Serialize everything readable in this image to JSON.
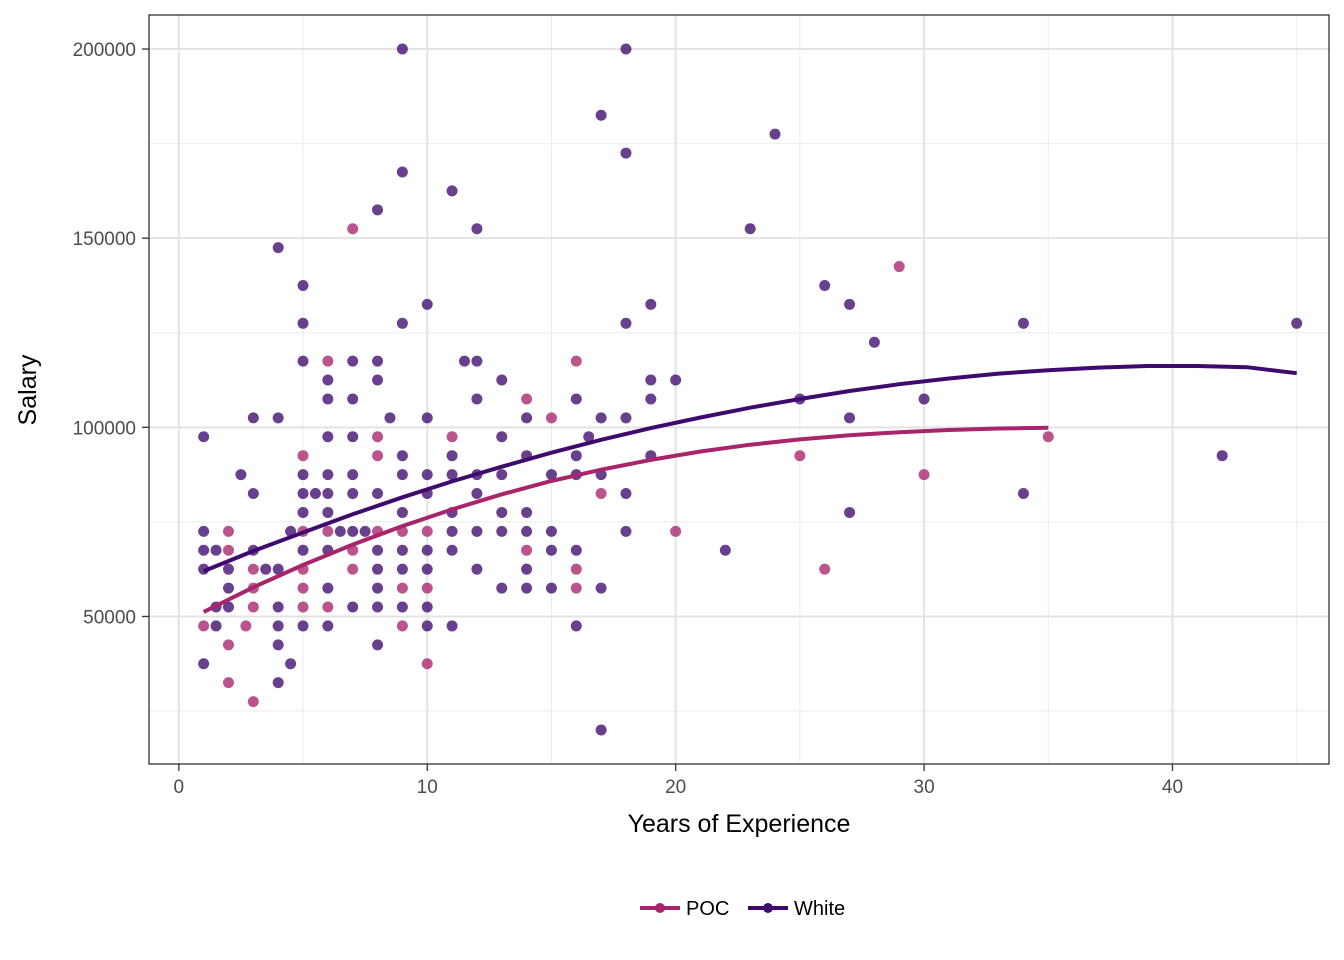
{
  "chart_data": {
    "type": "scatter",
    "title": "",
    "xlabel": "Years of Experience",
    "ylabel": "Salary",
    "xlim": [
      -1.2,
      46.3
    ],
    "ylim": [
      11000,
      209000
    ],
    "x_ticks": [
      0,
      10,
      20,
      30,
      40
    ],
    "x_tick_labels": [
      "0",
      "10",
      "20",
      "30",
      "40"
    ],
    "y_ticks": [
      50000,
      100000,
      150000,
      200000
    ],
    "y_tick_labels": [
      "50000",
      "100000",
      "150000",
      "200000"
    ],
    "grid": true,
    "legend_position": "bottom",
    "series": [
      {
        "name": "POC",
        "color": "#A8246B",
        "points": [
          [
            1,
            47500
          ],
          [
            2,
            72500
          ],
          [
            2,
            67500
          ],
          [
            2,
            42500
          ],
          [
            2,
            32500
          ],
          [
            2.7,
            47500
          ],
          [
            3,
            62500
          ],
          [
            3,
            57500
          ],
          [
            3,
            52500
          ],
          [
            3,
            27500
          ],
          [
            5,
            92500
          ],
          [
            5,
            72500
          ],
          [
            5,
            62500
          ],
          [
            5,
            57500
          ],
          [
            5,
            52500
          ],
          [
            6,
            117500
          ],
          [
            6,
            72500
          ],
          [
            6,
            52500
          ],
          [
            7,
            152500
          ],
          [
            7,
            67500
          ],
          [
            7,
            62500
          ],
          [
            8,
            97500
          ],
          [
            8,
            92500
          ],
          [
            8,
            72500
          ],
          [
            9,
            72500
          ],
          [
            9,
            57500
          ],
          [
            9,
            47500
          ],
          [
            10,
            72500
          ],
          [
            10,
            57500
          ],
          [
            10,
            37500
          ],
          [
            11,
            97500
          ],
          [
            14,
            107500
          ],
          [
            14,
            67500
          ],
          [
            15,
            102500
          ],
          [
            16,
            117500
          ],
          [
            16,
            62500
          ],
          [
            16,
            57500
          ],
          [
            17,
            82500
          ],
          [
            20,
            72500
          ],
          [
            25,
            92500
          ],
          [
            26,
            62500
          ],
          [
            29,
            142500
          ],
          [
            30,
            87500
          ],
          [
            35,
            97500
          ]
        ],
        "fit_line": [
          [
            1,
            51200
          ],
          [
            3,
            57700
          ],
          [
            5,
            63600
          ],
          [
            7,
            69000
          ],
          [
            9,
            73900
          ],
          [
            11,
            78300
          ],
          [
            13,
            82300
          ],
          [
            15,
            85800
          ],
          [
            17,
            88800
          ],
          [
            19,
            91400
          ],
          [
            21,
            93600
          ],
          [
            23,
            95400
          ],
          [
            25,
            96800
          ],
          [
            27,
            97900
          ],
          [
            29,
            98700
          ],
          [
            31,
            99300
          ],
          [
            33,
            99700
          ],
          [
            35,
            99900
          ]
        ]
      },
      {
        "name": "White",
        "color": "#3F0A6E",
        "points": [
          [
            1,
            97500
          ],
          [
            1,
            72500
          ],
          [
            1,
            67500
          ],
          [
            1,
            62500
          ],
          [
            1,
            37500
          ],
          [
            1.5,
            67500
          ],
          [
            1.5,
            52500
          ],
          [
            1.5,
            47500
          ],
          [
            2,
            62500
          ],
          [
            2,
            57500
          ],
          [
            2,
            52500
          ],
          [
            2.5,
            87500
          ],
          [
            3,
            102500
          ],
          [
            3,
            82500
          ],
          [
            3,
            67500
          ],
          [
            3.5,
            62500
          ],
          [
            4,
            147500
          ],
          [
            4,
            102500
          ],
          [
            4,
            62500
          ],
          [
            4,
            52500
          ],
          [
            4,
            47500
          ],
          [
            4,
            42500
          ],
          [
            4,
            32500
          ],
          [
            4.5,
            72500
          ],
          [
            4.5,
            37500
          ],
          [
            5,
            137500
          ],
          [
            5,
            127500
          ],
          [
            5,
            117500
          ],
          [
            5,
            87500
          ],
          [
            5,
            82500
          ],
          [
            5,
            77500
          ],
          [
            5,
            67500
          ],
          [
            5,
            47500
          ],
          [
            5.5,
            82500
          ],
          [
            6,
            112500
          ],
          [
            6,
            107500
          ],
          [
            6,
            97500
          ],
          [
            6,
            87500
          ],
          [
            6,
            82500
          ],
          [
            6,
            77500
          ],
          [
            6,
            67500
          ],
          [
            6,
            57500
          ],
          [
            6,
            47500
          ],
          [
            6.5,
            72500
          ],
          [
            7,
            117500
          ],
          [
            7,
            107500
          ],
          [
            7,
            97500
          ],
          [
            7,
            87500
          ],
          [
            7,
            82500
          ],
          [
            7,
            72500
          ],
          [
            7,
            52500
          ],
          [
            7.5,
            72500
          ],
          [
            8,
            157500
          ],
          [
            8,
            117500
          ],
          [
            8,
            112500
          ],
          [
            8,
            82500
          ],
          [
            8,
            67500
          ],
          [
            8,
            62500
          ],
          [
            8,
            57500
          ],
          [
            8,
            52500
          ],
          [
            8,
            42500
          ],
          [
            8.5,
            102500
          ],
          [
            9,
            200000
          ],
          [
            9,
            167500
          ],
          [
            9,
            127500
          ],
          [
            9,
            92500
          ],
          [
            9,
            87500
          ],
          [
            9,
            77500
          ],
          [
            9,
            67500
          ],
          [
            9,
            62500
          ],
          [
            9,
            52500
          ],
          [
            10,
            132500
          ],
          [
            10,
            102500
          ],
          [
            10,
            87500
          ],
          [
            10,
            82500
          ],
          [
            10,
            67500
          ],
          [
            10,
            62500
          ],
          [
            10,
            52500
          ],
          [
            10,
            47500
          ],
          [
            11,
            162500
          ],
          [
            11,
            92500
          ],
          [
            11,
            87500
          ],
          [
            11,
            77500
          ],
          [
            11,
            72500
          ],
          [
            11,
            67500
          ],
          [
            11,
            47500
          ],
          [
            11.5,
            117500
          ],
          [
            12,
            152500
          ],
          [
            12,
            117500
          ],
          [
            12,
            107500
          ],
          [
            12,
            87500
          ],
          [
            12,
            82500
          ],
          [
            12,
            72500
          ],
          [
            12,
            62500
          ],
          [
            13,
            112500
          ],
          [
            13,
            97500
          ],
          [
            13,
            87500
          ],
          [
            13,
            77500
          ],
          [
            13,
            72500
          ],
          [
            13,
            57500
          ],
          [
            14,
            102500
          ],
          [
            14,
            92500
          ],
          [
            14,
            77500
          ],
          [
            14,
            72500
          ],
          [
            14,
            62500
          ],
          [
            14,
            57500
          ],
          [
            15,
            87500
          ],
          [
            15,
            72500
          ],
          [
            15,
            67500
          ],
          [
            15,
            57500
          ],
          [
            16,
            107500
          ],
          [
            16,
            92500
          ],
          [
            16,
            87500
          ],
          [
            16,
            67500
          ],
          [
            16,
            47500
          ],
          [
            16.5,
            97500
          ],
          [
            17,
            182500
          ],
          [
            17,
            102500
          ],
          [
            17,
            87500
          ],
          [
            17,
            57500
          ],
          [
            17,
            20000
          ],
          [
            18,
            200000
          ],
          [
            18,
            172500
          ],
          [
            18,
            127500
          ],
          [
            18,
            102500
          ],
          [
            18,
            82500
          ],
          [
            18,
            72500
          ],
          [
            19,
            132500
          ],
          [
            19,
            112500
          ],
          [
            19,
            107500
          ],
          [
            19,
            92500
          ],
          [
            20,
            112500
          ],
          [
            22,
            67500
          ],
          [
            23,
            152500
          ],
          [
            24,
            177500
          ],
          [
            25,
            107500
          ],
          [
            26,
            137500
          ],
          [
            27,
            132500
          ],
          [
            27,
            102500
          ],
          [
            27,
            77500
          ],
          [
            28,
            122500
          ],
          [
            30,
            107500
          ],
          [
            34,
            127500
          ],
          [
            34,
            82500
          ],
          [
            42,
            92500
          ],
          [
            45,
            127500
          ]
        ],
        "fit_line": [
          [
            1,
            62000
          ],
          [
            3,
            67300
          ],
          [
            5,
            72200
          ],
          [
            7,
            77000
          ],
          [
            9,
            81500
          ],
          [
            11,
            85700
          ],
          [
            13,
            89600
          ],
          [
            15,
            93300
          ],
          [
            17,
            96700
          ],
          [
            19,
            99800
          ],
          [
            21,
            102600
          ],
          [
            23,
            105200
          ],
          [
            25,
            107500
          ],
          [
            27,
            109600
          ],
          [
            29,
            111400
          ],
          [
            31,
            112900
          ],
          [
            33,
            114200
          ],
          [
            35,
            115100
          ],
          [
            37,
            115800
          ],
          [
            39,
            116200
          ],
          [
            41,
            116200
          ],
          [
            43,
            115900
          ],
          [
            45,
            114300
          ]
        ]
      }
    ]
  }
}
